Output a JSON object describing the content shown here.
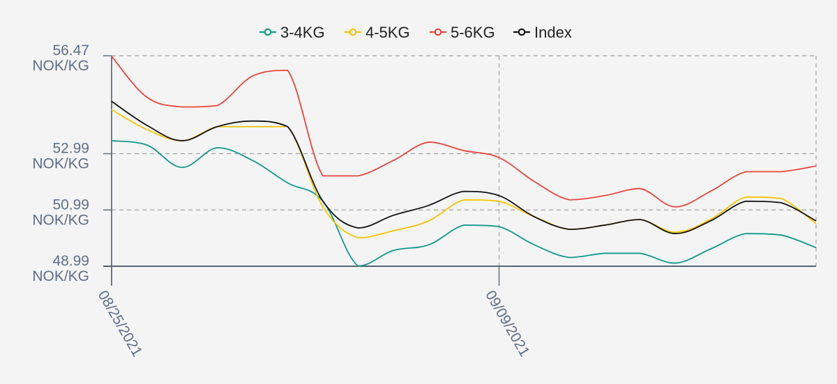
{
  "chart_data": {
    "type": "line",
    "x": [
      "08/25/2021",
      "08/26/2021",
      "08/27/2021",
      "08/30/2021",
      "08/31/2021",
      "09/01/2021",
      "09/02/2021",
      "09/03/2021",
      "09/06/2021",
      "09/07/2021",
      "09/08/2021",
      "09/09/2021",
      "09/10/2021",
      "09/13/2021",
      "09/14/2021",
      "09/15/2021",
      "09/16/2021",
      "09/17/2021",
      "09/20/2021",
      "09/21/2021",
      "09/22/2021"
    ],
    "x_tick_labels": [
      "08/25/2021",
      "09/09/2021"
    ],
    "x_tick_indices": [
      0,
      11
    ],
    "y_ticks": [
      {
        "value": 56.47,
        "label": "56.47",
        "unit": "NOK/KG"
      },
      {
        "value": 52.99,
        "label": "52.99",
        "unit": "NOK/KG"
      },
      {
        "value": 50.99,
        "label": "50.99",
        "unit": "NOK/KG"
      },
      {
        "value": 48.99,
        "label": "48.99",
        "unit": "NOK/KG"
      }
    ],
    "ylim": [
      48.99,
      56.47
    ],
    "grid": true,
    "legend_position": "top-center",
    "series": [
      {
        "name": "3-4KG",
        "color": "#11998a",
        "values": [
          53.45,
          53.3,
          52.5,
          53.2,
          52.75,
          51.95,
          51.3,
          49.0,
          49.55,
          49.75,
          50.45,
          50.4,
          49.75,
          49.3,
          49.45,
          49.45,
          49.1,
          49.6,
          50.15,
          50.1,
          49.65
        ]
      },
      {
        "name": "4-5KG",
        "color": "#f5c400",
        "values": [
          54.55,
          53.85,
          53.45,
          53.95,
          53.95,
          53.95,
          51.1,
          50.0,
          50.25,
          50.6,
          51.35,
          51.3,
          50.75,
          50.3,
          50.45,
          50.65,
          50.2,
          50.65,
          51.45,
          51.4,
          50.5
        ]
      },
      {
        "name": "5-6KG",
        "color": "#e8453c",
        "values": [
          56.45,
          55.0,
          54.65,
          54.7,
          55.75,
          55.95,
          52.2,
          52.2,
          52.75,
          53.4,
          53.1,
          52.85,
          52.0,
          51.35,
          51.5,
          51.75,
          51.1,
          51.65,
          52.35,
          52.35,
          52.55
        ]
      },
      {
        "name": "Index",
        "color": "#111111",
        "values": [
          54.85,
          54.0,
          53.45,
          53.95,
          54.15,
          53.95,
          51.3,
          50.35,
          50.8,
          51.15,
          51.65,
          51.5,
          50.75,
          50.3,
          50.45,
          50.65,
          50.15,
          50.6,
          51.3,
          51.25,
          50.6
        ]
      }
    ]
  }
}
